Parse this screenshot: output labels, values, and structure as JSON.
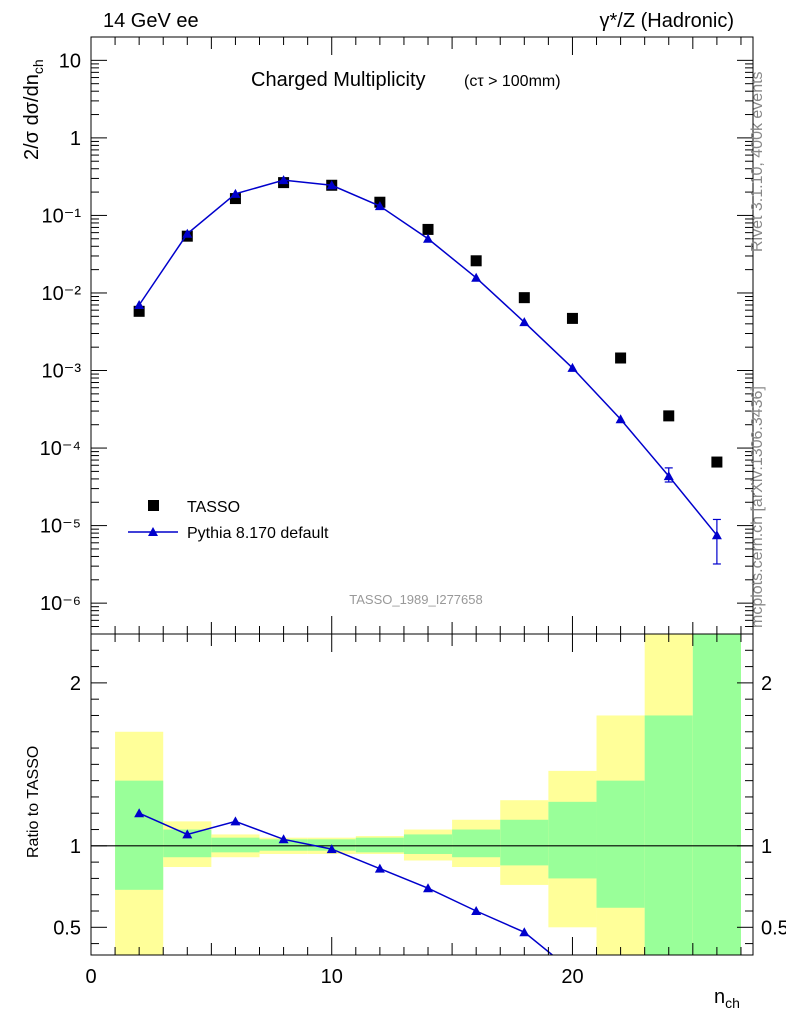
{
  "header": {
    "left_label": "14 GeV ee",
    "right_label": "γ*/Z (Hadronic)"
  },
  "side_labels": {
    "rivet": "Rivet 3.1.10,  400k events",
    "mcplots": "mcplots.cern.ch [arXiv:1306.3436]"
  },
  "chart_data": [
    {
      "type": "scatter",
      "title": "Charged Multiplicity",
      "title_suffix": "(cτ > 100mm)",
      "ylabel": "2/σ dσ/dn",
      "ylabel_sub": "ch",
      "yscale": "log",
      "ylim": [
        4e-07,
        20
      ],
      "xlim": [
        0,
        27.5
      ],
      "y_tick_labels": [
        "10",
        "1",
        "10⁻¹",
        "10⁻²",
        "10⁻³",
        "10⁻⁴",
        "10⁻⁵",
        "10⁻⁶"
      ],
      "analysis_label": "TASSO_1989_I277658",
      "legend_position": "bottom-left",
      "series": [
        {
          "name": "TASSO",
          "marker": "square",
          "color": "#000000",
          "x": [
            2,
            4,
            6,
            8,
            10,
            12,
            14,
            16,
            18,
            20,
            22,
            24,
            26
          ],
          "y": [
            0.0058,
            0.054,
            0.165,
            0.265,
            0.245,
            0.148,
            0.066,
            0.026,
            0.0087,
            0.0047,
            0.00145,
            0.00026,
            6.6e-05
          ]
        },
        {
          "name": "Pythia 8.170 default",
          "marker": "triangle",
          "color": "#0000cc",
          "x": [
            2,
            4,
            6,
            8,
            10,
            12,
            14,
            16,
            18,
            20,
            22,
            24,
            26
          ],
          "y": [
            0.007,
            0.058,
            0.19,
            0.285,
            0.245,
            0.132,
            0.05,
            0.0157,
            0.0042,
            0.00108,
            0.000235,
            4.35e-05,
            7.5e-06
          ],
          "err_low": [
            0,
            0,
            0,
            0,
            0,
            0,
            0,
            0,
            0,
            0,
            0,
            7e-06,
            4.3e-06
          ],
          "err_high": [
            0,
            0,
            0,
            0,
            0,
            0,
            0,
            0,
            0,
            0,
            0,
            1.2e-05,
            4.5e-06
          ]
        }
      ]
    },
    {
      "type": "line",
      "ylabel": "Ratio to TASSO",
      "xlabel": "n",
      "xlabel_sub": "ch",
      "xlim": [
        0,
        27.5
      ],
      "ylim": [
        0.33,
        2.3
      ],
      "x_ticks": [
        0,
        10,
        20
      ],
      "y_ticks": [
        0.5,
        1,
        2
      ],
      "reference_line": 1,
      "bands": [
        {
          "x_low": 1,
          "x_high": 3,
          "inner": [
            0.73,
            1.4
          ],
          "outer": [
            0,
            1.7
          ]
        },
        {
          "x_low": 3,
          "x_high": 5,
          "inner": [
            0.93,
            1.1
          ],
          "outer": [
            0.87,
            1.15
          ]
        },
        {
          "x_low": 5,
          "x_high": 7,
          "inner": [
            0.96,
            1.05
          ],
          "outer": [
            0.93,
            1.07
          ]
        },
        {
          "x_low": 7,
          "x_high": 9,
          "inner": [
            0.97,
            1.04
          ],
          "outer": [
            0.95,
            1.05
          ]
        },
        {
          "x_low": 9,
          "x_high": 11,
          "inner": [
            0.97,
            1.04
          ],
          "outer": [
            0.95,
            1.05
          ]
        },
        {
          "x_low": 11,
          "x_high": 13,
          "inner": [
            0.96,
            1.05
          ],
          "outer": [
            0.95,
            1.06
          ]
        },
        {
          "x_low": 13,
          "x_high": 15,
          "inner": [
            0.95,
            1.07
          ],
          "outer": [
            0.91,
            1.1
          ]
        },
        {
          "x_low": 15,
          "x_high": 17,
          "inner": [
            0.93,
            1.1
          ],
          "outer": [
            0.87,
            1.16
          ]
        },
        {
          "x_low": 17,
          "x_high": 19,
          "inner": [
            0.88,
            1.16
          ],
          "outer": [
            0.76,
            1.28
          ]
        },
        {
          "x_low": 19,
          "x_high": 21,
          "inner": [
            0.8,
            1.27
          ],
          "outer": [
            0.5,
            1.46
          ]
        },
        {
          "x_low": 21,
          "x_high": 23,
          "inner": [
            0.62,
            1.4
          ],
          "outer": [
            0.3,
            1.8
          ]
        },
        {
          "x_low": 23,
          "x_high": 25,
          "inner": [
            0.3,
            1.8
          ],
          "outer": [
            0.3,
            2.5
          ]
        },
        {
          "x_low": 25,
          "x_high": 27,
          "inner": [
            0.3,
            2.5
          ],
          "outer": [
            0.3,
            2.5
          ]
        }
      ],
      "band_colors": {
        "inner": "#99ff99",
        "outer": "#ffff99"
      },
      "series": [
        {
          "name": "Pythia 8.170 default",
          "color": "#0000cc",
          "x": [
            2,
            4,
            6,
            8,
            10,
            12,
            14,
            16,
            18,
            20
          ],
          "y": [
            1.2,
            1.07,
            1.15,
            1.04,
            0.98,
            0.86,
            0.74,
            0.6,
            0.47,
            0.23
          ]
        }
      ]
    }
  ]
}
